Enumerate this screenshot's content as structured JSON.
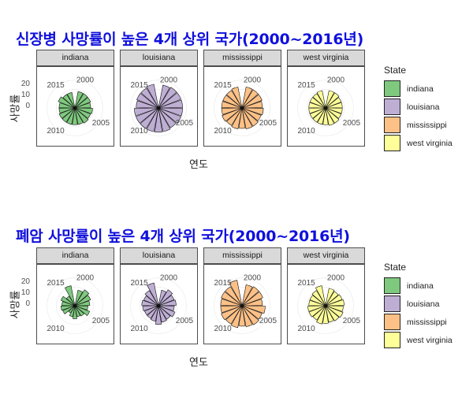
{
  "chart_data": [
    {
      "type": "polar_bar",
      "title": "신장병 사망률이 높은 4개 상위 국가(2000~2016년)",
      "xlabel": "연도",
      "ylabel": "사망률",
      "y_ticks": [
        "20",
        "10",
        "0"
      ],
      "x_tick_labels": [
        "2000",
        "2005",
        "2010",
        "2015"
      ],
      "legend_title": "State",
      "legend": [
        {
          "name": "indiana",
          "color": "#7fc97f"
        },
        {
          "name": "louisiana",
          "color": "#beaed4"
        },
        {
          "name": "mississippi",
          "color": "#fdc086"
        },
        {
          "name": "west virginia",
          "color": "#ffff99"
        }
      ],
      "years": [
        2000,
        2001,
        2002,
        2003,
        2004,
        2005,
        2006,
        2007,
        2008,
        2009,
        2010,
        2011,
        2012,
        2013,
        2014,
        2015,
        2016
      ],
      "facets": [
        {
          "state": "indiana",
          "color": "#7fc97f",
          "values": [
            18,
            18,
            18,
            17,
            19,
            18,
            19,
            18,
            18,
            18,
            18,
            18,
            17,
            17,
            19,
            17,
            17
          ]
        },
        {
          "state": "louisiana",
          "color": "#beaed4",
          "values": [
            25,
            26,
            26,
            26,
            26,
            26,
            25,
            26,
            26,
            26,
            26,
            26,
            26,
            24,
            25,
            25,
            26
          ]
        },
        {
          "state": "mississippi",
          "color": "#fdc086",
          "values": [
            23,
            23,
            23,
            22,
            23,
            22,
            23,
            23,
            22,
            23,
            22,
            23,
            22,
            22,
            22,
            22,
            23
          ]
        },
        {
          "state": "west virginia",
          "color": "#ffff99",
          "values": [
            19,
            19,
            18,
            18,
            18,
            18,
            19,
            19,
            18,
            18,
            18,
            18,
            18,
            18,
            18,
            18,
            19
          ]
        }
      ]
    },
    {
      "type": "polar_bar",
      "title": "폐암 사망률이 높은 4개 상위 국가(2000~2016년)",
      "xlabel": "연도",
      "ylabel": "사망률",
      "y_ticks": [
        "20",
        "10",
        "0"
      ],
      "x_tick_labels": [
        "2000",
        "2005",
        "2010",
        "2015"
      ],
      "legend_title": "State",
      "legend": [
        {
          "name": "indiana",
          "color": "#7fc97f"
        },
        {
          "name": "louisiana",
          "color": "#beaed4"
        },
        {
          "name": "mississippi",
          "color": "#fdc086"
        },
        {
          "name": "west virginia",
          "color": "#ffff99"
        }
      ],
      "years": [
        2000,
        2001,
        2002,
        2003,
        2004,
        2005,
        2006,
        2007,
        2008,
        2009,
        2010,
        2011,
        2012,
        2013,
        2014,
        2015,
        2016
      ],
      "facets": [
        {
          "state": "indiana",
          "color": "#7fc97f",
          "values": [
            17,
            20,
            18,
            16,
            14,
            17,
            13,
            12,
            14,
            12,
            9,
            14,
            15,
            14,
            16,
            12,
            22
          ]
        },
        {
          "state": "louisiana",
          "color": "#beaed4",
          "values": [
            17,
            20,
            18,
            19,
            17,
            19,
            17,
            18,
            20,
            17,
            16,
            16,
            17,
            18,
            17,
            19,
            25
          ]
        },
        {
          "state": "mississippi",
          "color": "#fdc086",
          "values": [
            23,
            24,
            24,
            22,
            25,
            23,
            24,
            23,
            22,
            24,
            23,
            24,
            23,
            23,
            24,
            24,
            28
          ]
        },
        {
          "state": "west virginia",
          "color": "#ffff99",
          "values": [
            19,
            18,
            19,
            20,
            19,
            20,
            19,
            18,
            19,
            20,
            18,
            19,
            19,
            18,
            18,
            19,
            22
          ]
        }
      ]
    }
  ]
}
